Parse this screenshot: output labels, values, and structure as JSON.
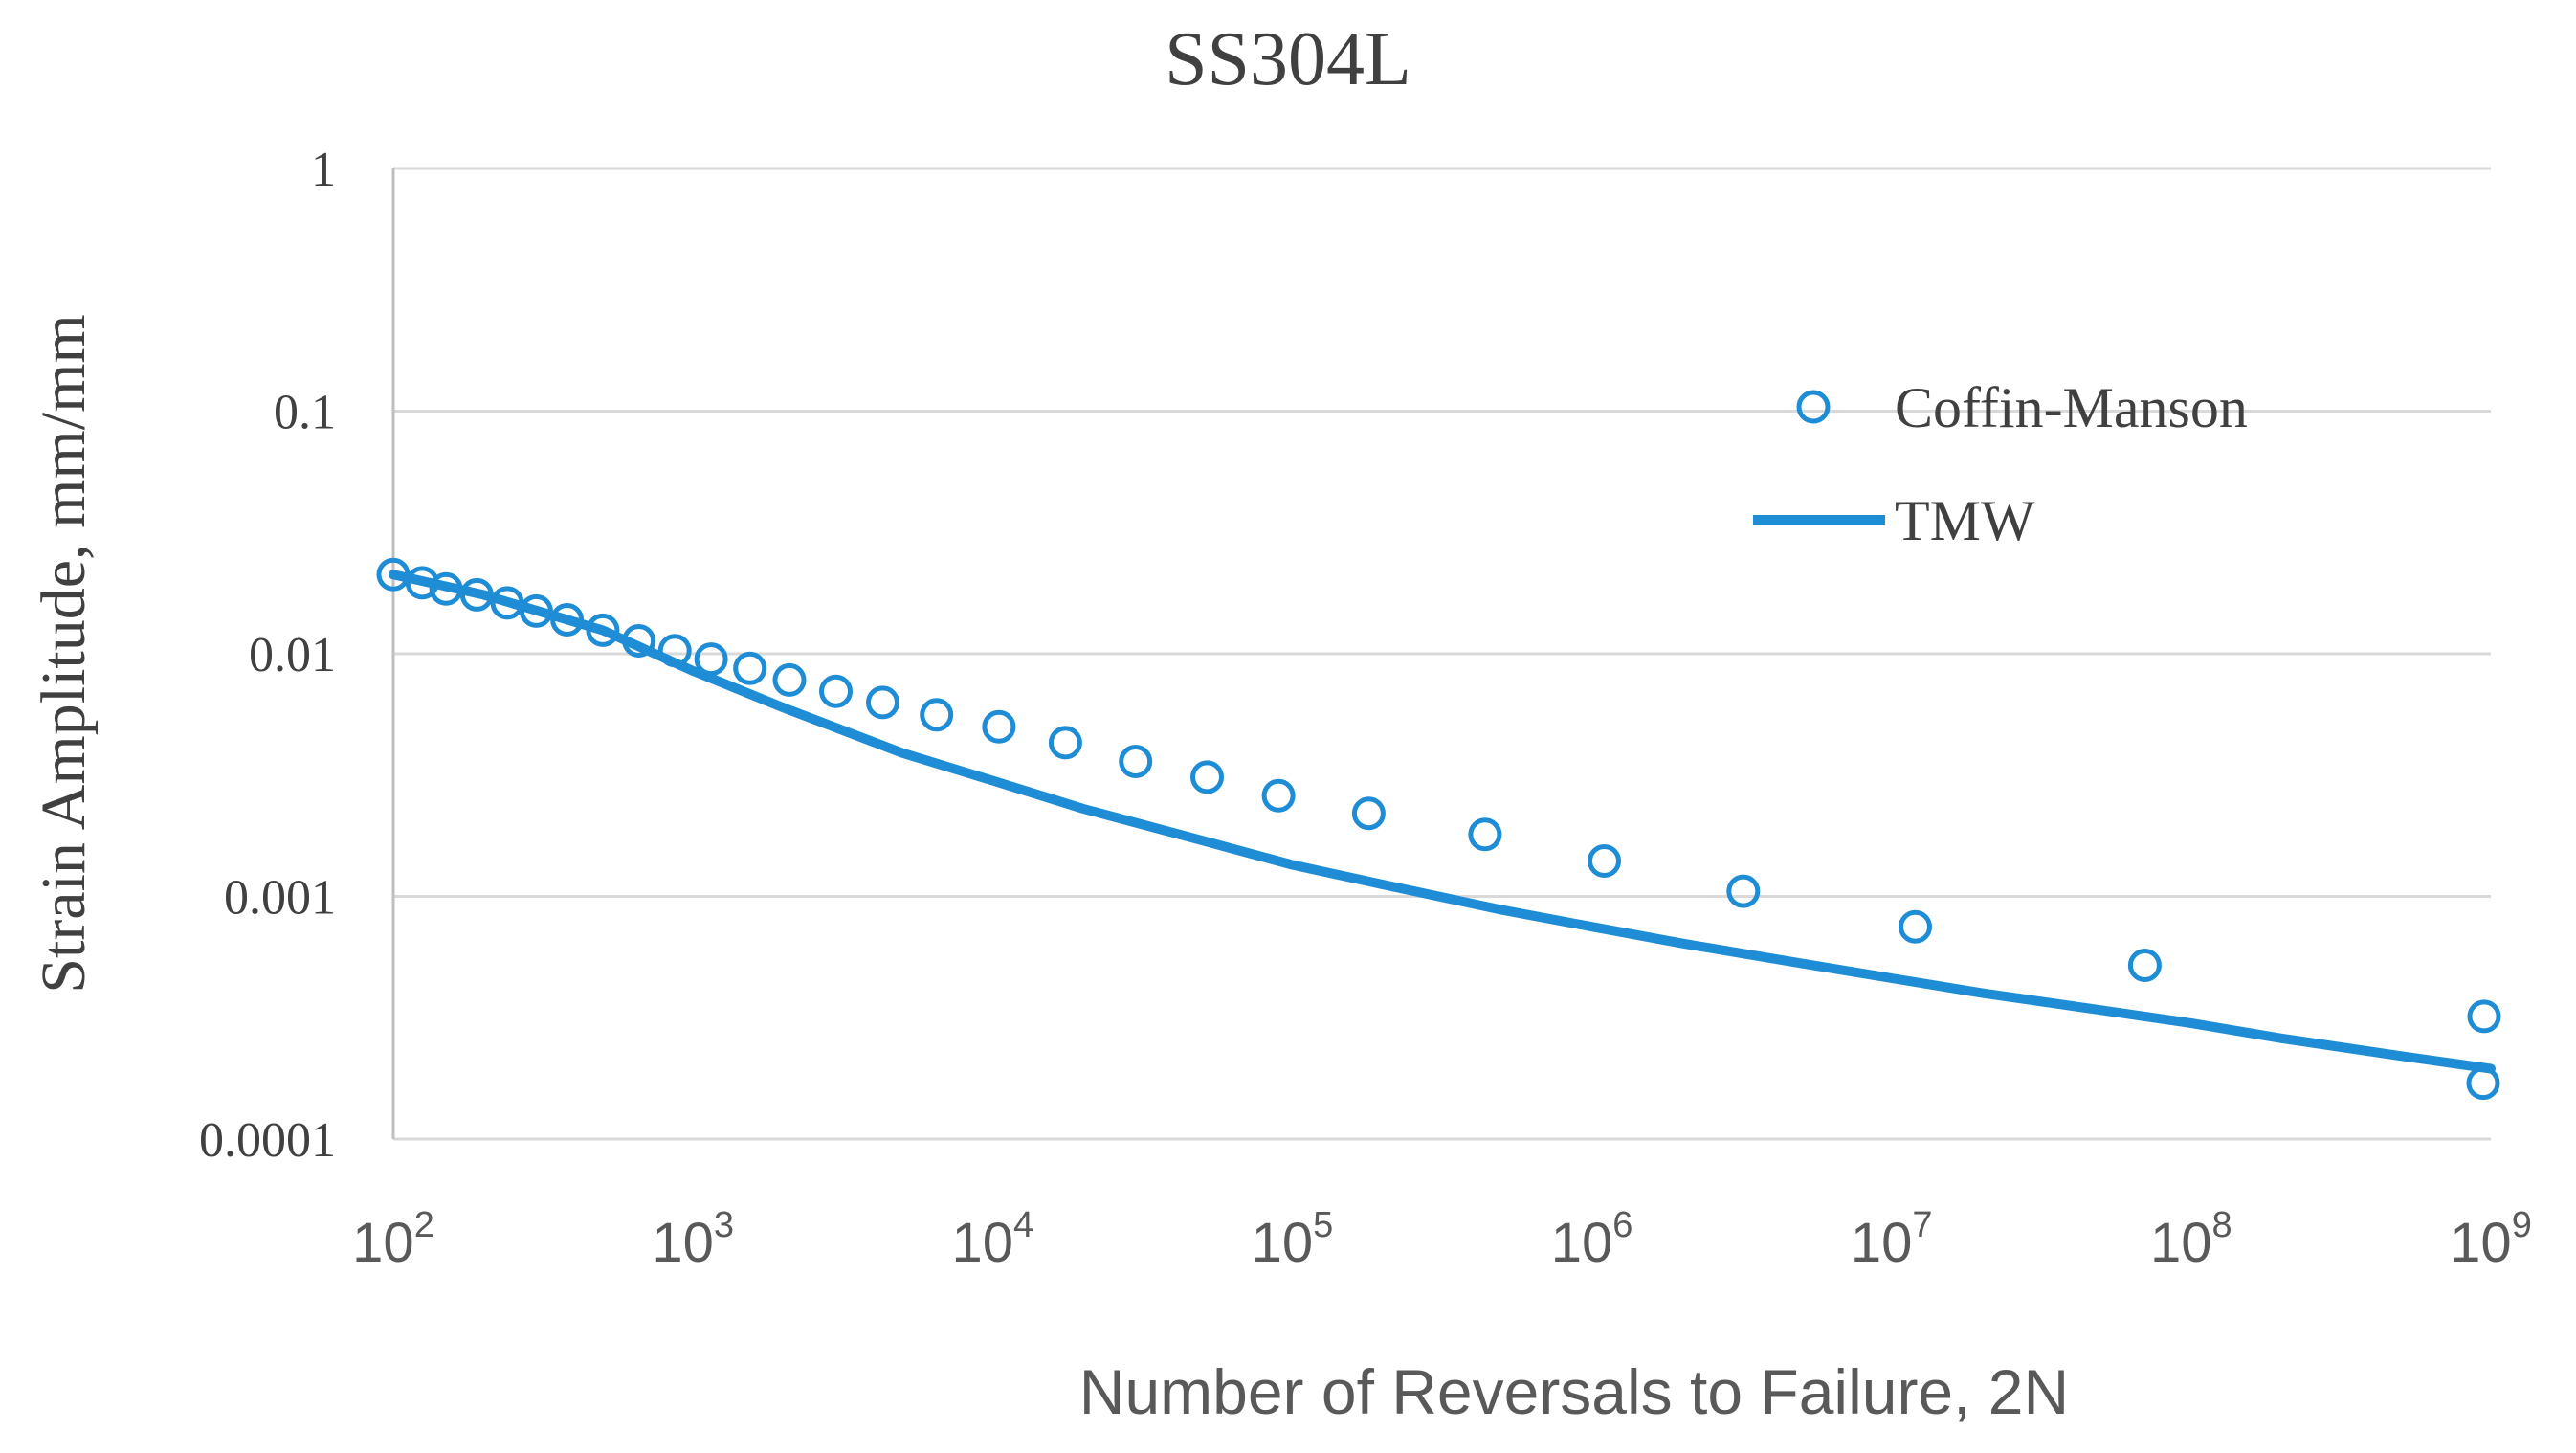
{
  "chart_data": {
    "type": "scatter",
    "title": "SS304L",
    "xlabel": "Number of Reversals to Failure, 2N",
    "ylabel": "Strain Amplitude, mm/mm",
    "xscale": "log",
    "yscale": "log",
    "xlim": [
      100,
      1000000000
    ],
    "ylim": [
      0.0001,
      1
    ],
    "grid": true,
    "legend_position": "top-right",
    "x_ticks": [
      {
        "base": "10",
        "exp": "2",
        "value": 100
      },
      {
        "base": "10",
        "exp": "3",
        "value": 1000
      },
      {
        "base": "10",
        "exp": "4",
        "value": 10000
      },
      {
        "base": "10",
        "exp": "5",
        "value": 100000
      },
      {
        "base": "10",
        "exp": "6",
        "value": 1000000
      },
      {
        "base": "10",
        "exp": "7",
        "value": 10000000
      },
      {
        "base": "10",
        "exp": "8",
        "value": 100000000
      },
      {
        "base": "10",
        "exp": "9",
        "value": 1000000000
      }
    ],
    "y_ticks": [
      {
        "label": "1",
        "value": 1
      },
      {
        "label": "0.1",
        "value": 0.1
      },
      {
        "label": "0.01",
        "value": 0.01
      },
      {
        "label": "0.001",
        "value": 0.001
      },
      {
        "label": "0.0001",
        "value": 0.0001
      }
    ],
    "series": [
      {
        "name": "Coffin-Manson",
        "style": "markers",
        "marker": "open-circle",
        "color": "#1f8dd6",
        "x": [
          100,
          125,
          150,
          190,
          240,
          300,
          380,
          500,
          660,
          870,
          1150,
          1550,
          2100,
          3000,
          4300,
          6500,
          10500,
          17500,
          30000,
          52000,
          90000,
          180000,
          440000,
          1100000,
          3200000,
          12000000,
          70000000,
          950000000
        ],
        "y": [
          0.0212,
          0.0196,
          0.0185,
          0.0175,
          0.0162,
          0.015,
          0.0138,
          0.0125,
          0.0113,
          0.0103,
          0.0095,
          0.0087,
          0.0078,
          0.007,
          0.0063,
          0.0056,
          0.005,
          0.0043,
          0.0036,
          0.0031,
          0.0026,
          0.0022,
          0.0018,
          0.0014,
          0.00105,
          0.00075,
          0.00052,
          0.00032
        ]
      },
      {
        "name": "TMW",
        "style": "line",
        "color": "#1f8dd6",
        "x": [
          100,
          200,
          500,
          1000,
          2000,
          5000,
          10000,
          20000,
          50000,
          100000,
          200000,
          500000,
          1000000,
          2000000,
          5000000,
          10000000,
          20000000,
          50000000,
          100000000,
          200000000,
          500000000,
          1000000000
        ],
        "y": [
          0.0212,
          0.0175,
          0.0125,
          0.0085,
          0.006,
          0.0039,
          0.003,
          0.0023,
          0.0017,
          0.00135,
          0.00112,
          0.00088,
          0.00075,
          0.00064,
          0.00053,
          0.00046,
          0.0004,
          0.00034,
          0.0003,
          0.00026,
          0.00022,
          0.000195
        ]
      }
    ],
    "last_marker": {
      "x": 1000000000,
      "y": 0.00017
    }
  }
}
